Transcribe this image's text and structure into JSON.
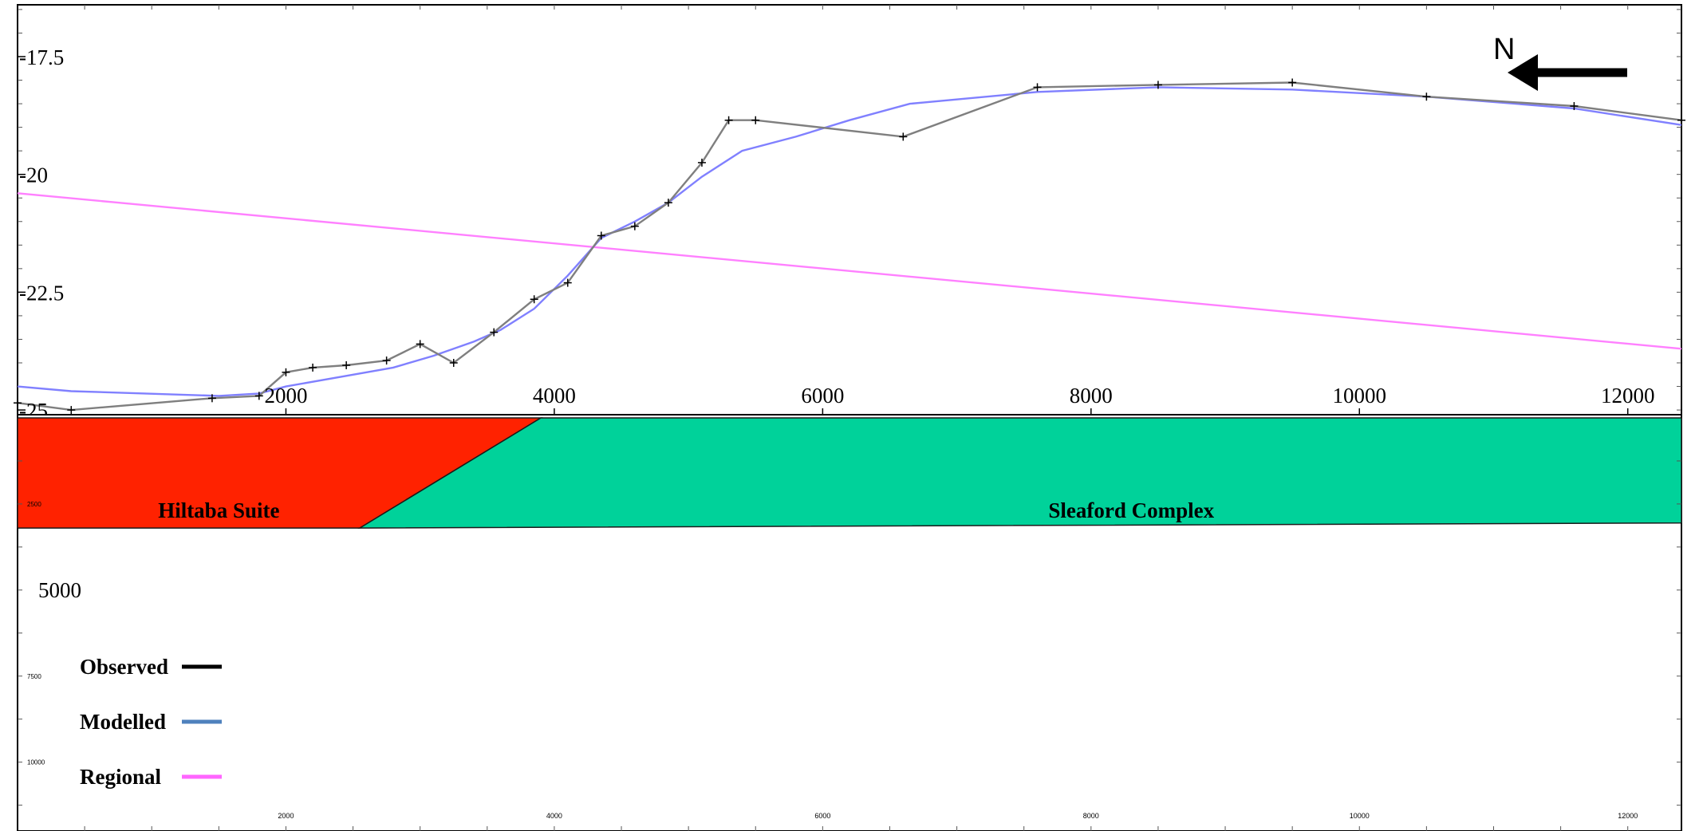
{
  "chart_data": [
    {
      "type": "line",
      "title": "",
      "xlabel": "",
      "ylabel": "",
      "xlim": [
        0,
        12400
      ],
      "ylim": [
        -25.1,
        -16.4
      ],
      "x_ticks": [
        2000,
        4000,
        6000,
        8000,
        10000,
        12000
      ],
      "x_tick_labels": [
        "2000",
        "4000",
        "6000",
        "8000",
        "10000",
        "12000"
      ],
      "y_ticks": [
        -17.5,
        -20,
        -22.5,
        -25
      ],
      "y_tick_labels": [
        "-17.5",
        "-20",
        "-22.5",
        "-25"
      ],
      "grid": false,
      "series": [
        {
          "name": "Observed",
          "color": "#7f7f7f",
          "legend_color": "#000000",
          "markers": true,
          "x": [
            0,
            400,
            1450,
            1800,
            2000,
            2200,
            2450,
            2750,
            3000,
            3250,
            3550,
            3850,
            4100,
            4350,
            4600,
            4850,
            5100,
            5300,
            5500,
            6600,
            7600,
            8500,
            9500,
            10500,
            11600,
            12400
          ],
          "y": [
            -24.85,
            -25.0,
            -24.75,
            -24.7,
            -24.2,
            -24.1,
            -24.05,
            -23.95,
            -23.6,
            -24.0,
            -23.35,
            -22.65,
            -22.3,
            -21.3,
            -21.1,
            -20.6,
            -19.75,
            -18.85,
            -18.85,
            -19.2,
            -18.15,
            -18.1,
            -18.05,
            -18.35,
            -18.55,
            -18.85
          ]
        },
        {
          "name": "Modelled",
          "color": "#8080ff",
          "legend_color": "#4f81bd",
          "markers": false,
          "x": [
            0,
            400,
            1500,
            1800,
            2000,
            2500,
            2800,
            3100,
            3400,
            3600,
            3850,
            4100,
            4350,
            4600,
            4850,
            5100,
            5400,
            5800,
            6200,
            6650,
            7600,
            8500,
            9500,
            10500,
            11600,
            12400
          ],
          "y": [
            -24.5,
            -24.6,
            -24.7,
            -24.65,
            -24.5,
            -24.25,
            -24.1,
            -23.85,
            -23.55,
            -23.3,
            -22.85,
            -22.15,
            -21.35,
            -21.0,
            -20.6,
            -20.05,
            -19.5,
            -19.2,
            -18.85,
            -18.5,
            -18.25,
            -18.15,
            -18.2,
            -18.35,
            -18.6,
            -18.95
          ]
        },
        {
          "name": "Regional",
          "color": "#ff80ff",
          "legend_color": "#ff66ff",
          "markers": false,
          "x": [
            0,
            12400
          ],
          "y": [
            -20.4,
            -23.7
          ]
        }
      ],
      "annotations": [
        {
          "text": "N",
          "type": "north-arrow",
          "direction": "left"
        }
      ]
    },
    {
      "type": "area",
      "title": "",
      "xlim": [
        0,
        12400
      ],
      "ylim": [
        12000,
        0
      ],
      "x_ticks": [
        2000,
        4000,
        6000,
        8000,
        10000,
        12000
      ],
      "x_tick_labels": [
        "2000",
        "4000",
        "6000",
        "8000",
        "10000",
        "12000"
      ],
      "y_ticks": [
        2500,
        5000,
        7500,
        10000
      ],
      "y_tick_labels": [
        "2500",
        "5000",
        "7500",
        "10000"
      ],
      "bodies": [
        {
          "name": "Hiltaba Suite",
          "color": "#ff2200",
          "points": [
            [
              0,
              0
            ],
            [
              3900,
              0
            ],
            [
              2550,
              3200
            ],
            [
              0,
              3200
            ]
          ]
        },
        {
          "name": "Sleaford Complex",
          "color": "#00d29a",
          "points": [
            [
              3900,
              0
            ],
            [
              12400,
              0
            ],
            [
              12400,
              3050
            ],
            [
              2550,
              3200
            ]
          ]
        }
      ]
    }
  ],
  "legend": {
    "placement": "bottom-left",
    "items": [
      {
        "label": "Observed",
        "color": "#000000"
      },
      {
        "label": "Modelled",
        "color": "#4f81bd"
      },
      {
        "label": "Regional",
        "color": "#ff66ff"
      }
    ]
  },
  "north_arrow": {
    "label": "N"
  }
}
